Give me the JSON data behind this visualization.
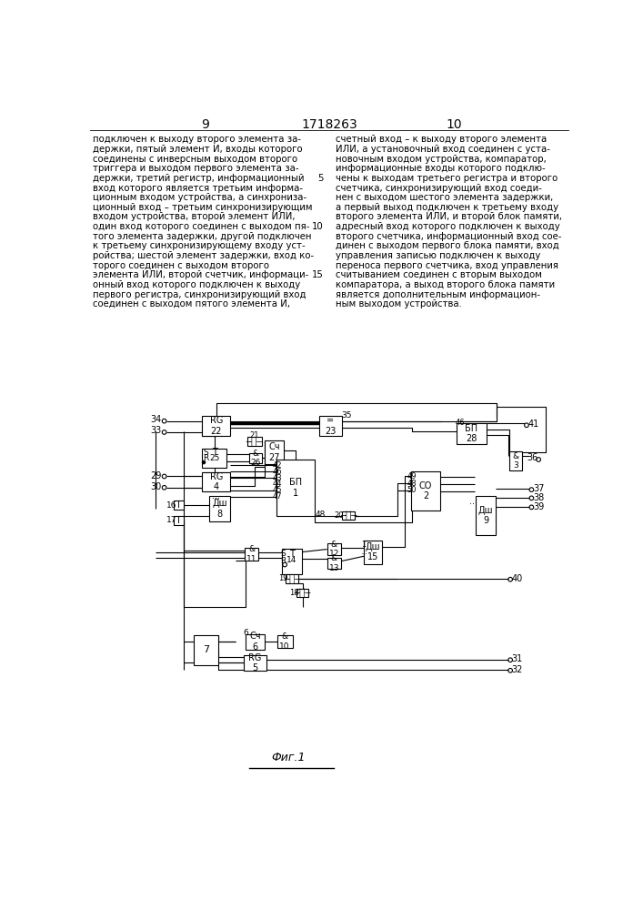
{
  "page_left": "9",
  "page_right": "10",
  "patent_num": "1718263",
  "text_left": "подключен к выходу второго элемента за-\nдержки, пятый элемент И, входы которого\nсоединены с инверсным выходом второго\nтриггера и выходом первого элемента за-\nдержки, третий регистр, информационный\nвход которого является третьим информа-\nционным входом устройства, а синхрониза-\nционный вход – третьим синхронизирующим\nвходом устройства, второй элемент ИЛИ,\nодин вход которого соединен с выходом пя-\nтого элемента задержки, другой подключен\nк третьему синхронизирующему входу уст-\nройства; шестой элемент задержки, вход ко-\nторого соединен с выходом второго\nэлемента ИЛИ, второй счетчик, информаци-\nонный вход которого подключен к выходу\nпервого регистра, синхронизирующий вход\nсоединен с выходом пятого элемента И,",
  "text_right": "счетный вход – к выходу второго элемента\nИЛИ, а установочный вход соединен с уста-\nновочным входом устройства, компаратор,\nинформационные входы которого подклю-\nчены к выходам третьего регистра и второго\nсчетчика, синхронизирующий вход соеди-\nнен с выходом шестого элемента задержки,\nа первый выход подключен к третьему входу\nвторого элемента ИЛИ, и второй блок памяти,\nадресный вход которого подключен к выходу\nвторого счетчика, информационный вход сое-\nдинен с выходом первого блока памяти, вход\nуправления записью подключен к выходу\nпереноса первого счетчика, вход управления\nсчитыванием соединен с вторым выходом\nкомпаратора, а выход второго блока памяти\nявляется дополнительным информацион-\nным выходом устройства.",
  "fig_caption": "Фиг.1"
}
